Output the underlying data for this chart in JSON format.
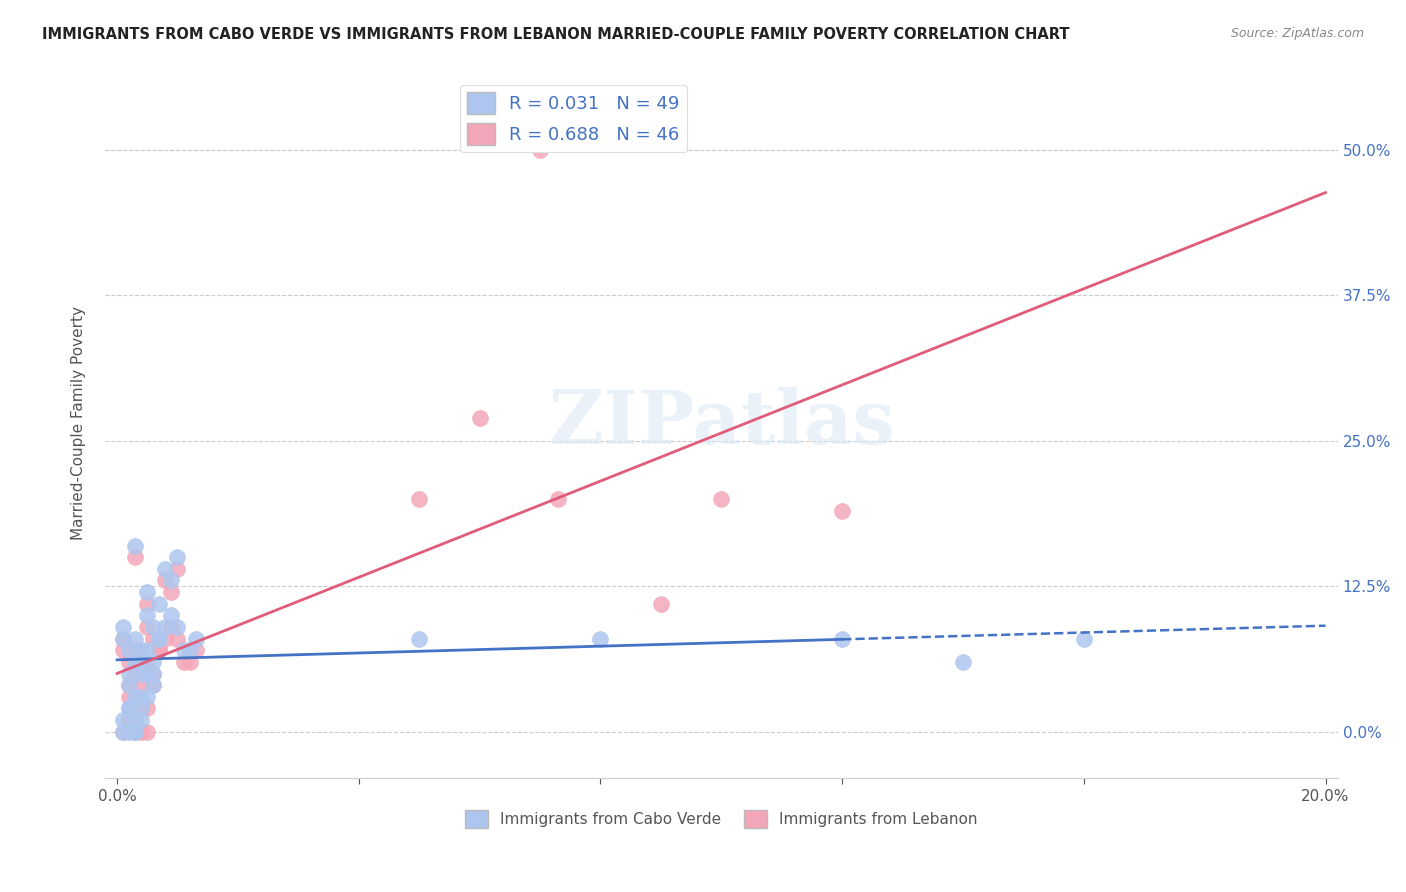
{
  "title": "IMMIGRANTS FROM CABO VERDE VS IMMIGRANTS FROM LEBANON MARRIED-COUPLE FAMILY POVERTY CORRELATION CHART",
  "source": "Source: ZipAtlas.com",
  "ylabel": "Married-Couple Family Poverty",
  "background_color": "#ffffff",
  "grid_color": "#cccccc",
  "watermark_text": "ZIPatlas",
  "cabo_verde_color": "#aec6ef",
  "lebanon_color": "#f4a7b9",
  "cabo_verde_line_color": "#4472c4",
  "lebanon_line_color": "#e05c7a",
  "cabo_verde_R": 0.031,
  "cabo_verde_N": 49,
  "lebanon_R": 0.688,
  "lebanon_N": 46,
  "cabo_verde_x": [
    0.001,
    0.002,
    0.003,
    0.002,
    0.004,
    0.005,
    0.003,
    0.001,
    0.004,
    0.006,
    0.002,
    0.003,
    0.005,
    0.007,
    0.004,
    0.006,
    0.008,
    0.003,
    0.005,
    0.007,
    0.009,
    0.01,
    0.005,
    0.003,
    0.006,
    0.004,
    0.008,
    0.002,
    0.007,
    0.009,
    0.011,
    0.013,
    0.006,
    0.004,
    0.01,
    0.012,
    0.05,
    0.08,
    0.001,
    0.002,
    0.003,
    0.004,
    0.005,
    0.002,
    0.001,
    0.003,
    0.12,
    0.14,
    0.16
  ],
  "cabo_verde_y": [
    0.08,
    0.07,
    0.06,
    0.04,
    0.05,
    0.03,
    0.08,
    0.09,
    0.07,
    0.05,
    0.02,
    0.03,
    0.1,
    0.08,
    0.06,
    0.09,
    0.14,
    0.16,
    0.12,
    0.11,
    0.13,
    0.15,
    0.07,
    0.01,
    0.04,
    0.02,
    0.09,
    0.05,
    0.08,
    0.1,
    0.07,
    0.08,
    0.06,
    0.03,
    0.09,
    0.07,
    0.08,
    0.08,
    0.01,
    0.02,
    0.0,
    0.01,
    0.05,
    0.0,
    0.0,
    0.0,
    0.08,
    0.06,
    0.08
  ],
  "lebanon_x": [
    0.001,
    0.002,
    0.003,
    0.002,
    0.004,
    0.005,
    0.003,
    0.001,
    0.004,
    0.006,
    0.002,
    0.003,
    0.005,
    0.007,
    0.004,
    0.006,
    0.008,
    0.003,
    0.005,
    0.05,
    0.009,
    0.01,
    0.005,
    0.003,
    0.06,
    0.09,
    0.008,
    0.002,
    0.007,
    0.009,
    0.011,
    0.013,
    0.006,
    0.004,
    0.01,
    0.012,
    0.1,
    0.12,
    0.001,
    0.002,
    0.003,
    0.004,
    0.005,
    0.002,
    0.07,
    0.073
  ],
  "lebanon_y": [
    0.07,
    0.06,
    0.05,
    0.03,
    0.04,
    0.02,
    0.07,
    0.08,
    0.06,
    0.04,
    0.01,
    0.02,
    0.09,
    0.07,
    0.05,
    0.08,
    0.13,
    0.15,
    0.11,
    0.2,
    0.12,
    0.14,
    0.06,
    0.0,
    0.27,
    0.11,
    0.08,
    0.04,
    0.07,
    0.09,
    0.06,
    0.07,
    0.05,
    0.02,
    0.08,
    0.06,
    0.2,
    0.19,
    0.0,
    0.01,
    0.02,
    0.0,
    0.0,
    0.01,
    0.5,
    0.2
  ],
  "xlim": [
    0.0,
    0.2
  ],
  "ylim": [
    -0.04,
    0.57
  ]
}
